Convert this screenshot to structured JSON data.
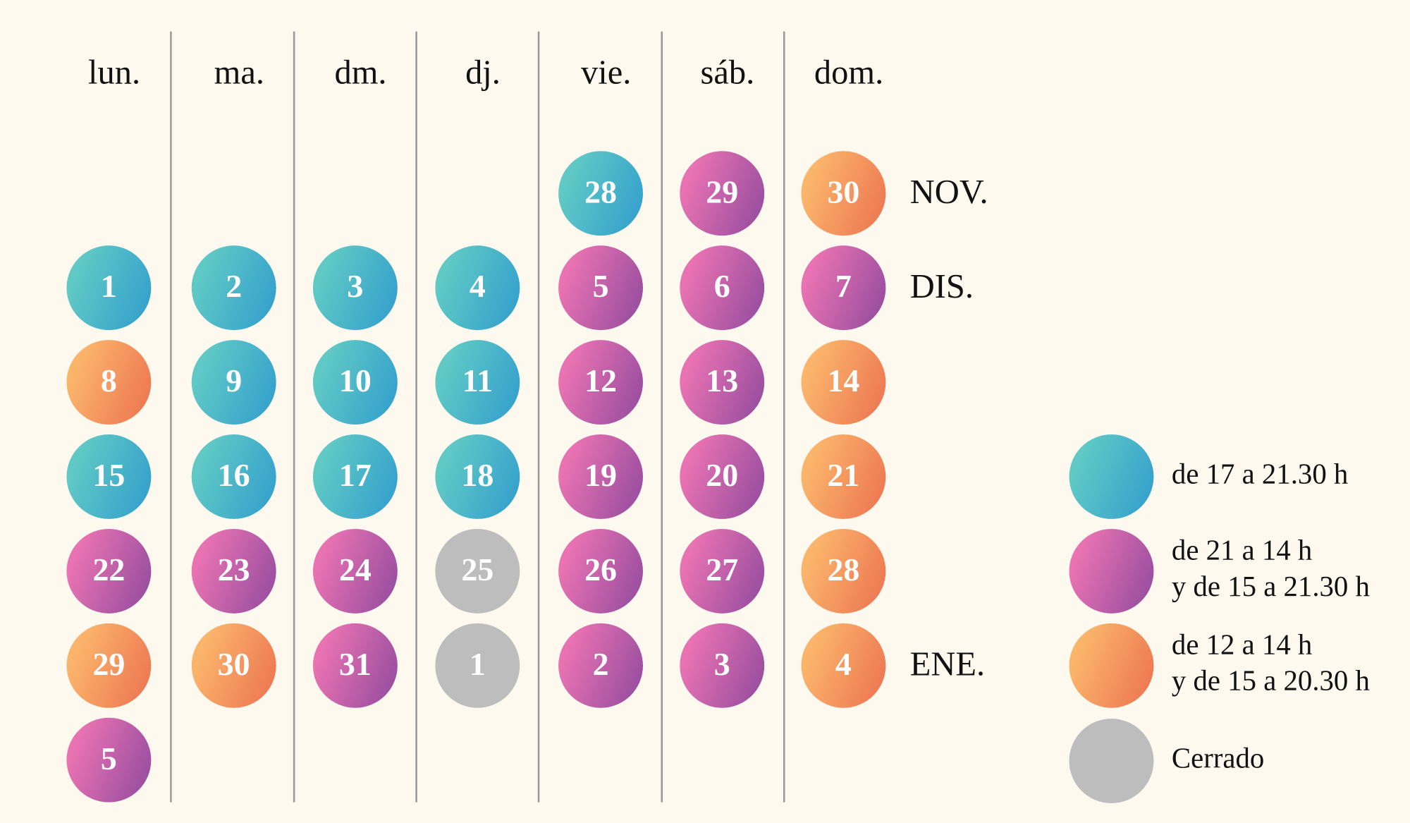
{
  "weekdays": [
    "lun.",
    "ma.",
    "dm.",
    "dj.",
    "vie.",
    "sáb.",
    "dom."
  ],
  "colors": {
    "teal": [
      "#60c9c6",
      "#35a1cc"
    ],
    "purple": [
      "#e872b2",
      "#994ea0"
    ],
    "orange": [
      "#fbb56b",
      "#ed7853"
    ],
    "gray": [
      "#bdbdbd",
      "#bdbdbd"
    ]
  },
  "weeks": [
    {
      "month": "NOV.",
      "days": [
        null,
        null,
        null,
        null,
        {
          "day": "28",
          "color": "teal"
        },
        {
          "day": "29",
          "color": "purple"
        },
        {
          "day": "30",
          "color": "orange"
        }
      ]
    },
    {
      "month": "DIS.",
      "days": [
        {
          "day": "1",
          "color": "teal"
        },
        {
          "day": "2",
          "color": "teal"
        },
        {
          "day": "3",
          "color": "teal"
        },
        {
          "day": "4",
          "color": "teal"
        },
        {
          "day": "5",
          "color": "purple"
        },
        {
          "day": "6",
          "color": "purple"
        },
        {
          "day": "7",
          "color": "purple"
        }
      ]
    },
    {
      "days": [
        {
          "day": "8",
          "color": "orange"
        },
        {
          "day": "9",
          "color": "teal"
        },
        {
          "day": "10",
          "color": "teal"
        },
        {
          "day": "11",
          "color": "teal"
        },
        {
          "day": "12",
          "color": "purple"
        },
        {
          "day": "13",
          "color": "purple"
        },
        {
          "day": "14",
          "color": "orange"
        }
      ]
    },
    {
      "days": [
        {
          "day": "15",
          "color": "teal"
        },
        {
          "day": "16",
          "color": "teal"
        },
        {
          "day": "17",
          "color": "teal"
        },
        {
          "day": "18",
          "color": "teal"
        },
        {
          "day": "19",
          "color": "purple"
        },
        {
          "day": "20",
          "color": "purple"
        },
        {
          "day": "21",
          "color": "orange"
        }
      ]
    },
    {
      "days": [
        {
          "day": "22",
          "color": "purple"
        },
        {
          "day": "23",
          "color": "purple"
        },
        {
          "day": "24",
          "color": "purple"
        },
        {
          "day": "25",
          "color": "gray"
        },
        {
          "day": "26",
          "color": "purple"
        },
        {
          "day": "27",
          "color": "purple"
        },
        {
          "day": "28",
          "color": "orange"
        }
      ]
    },
    {
      "month": "ENE.",
      "days": [
        {
          "day": "29",
          "color": "orange"
        },
        {
          "day": "30",
          "color": "orange"
        },
        {
          "day": "31",
          "color": "purple"
        },
        {
          "day": "1",
          "color": "gray"
        },
        {
          "day": "2",
          "color": "purple"
        },
        {
          "day": "3",
          "color": "purple"
        },
        {
          "day": "4",
          "color": "orange"
        }
      ]
    },
    {
      "days": [
        {
          "day": "5",
          "color": "purple"
        },
        null,
        null,
        null,
        null,
        null,
        null
      ]
    }
  ],
  "legend": [
    {
      "color": "teal",
      "lines": [
        "de 17 a 21.30 h"
      ]
    },
    {
      "color": "purple",
      "lines": [
        "de 21 a 14 h",
        "y de 15 a 21.30 h"
      ]
    },
    {
      "color": "orange",
      "lines": [
        "de 12 a 14 h",
        "y de 15 a 20.30 h"
      ]
    },
    {
      "color": "gray",
      "lines": [
        "Cerrado"
      ]
    }
  ]
}
